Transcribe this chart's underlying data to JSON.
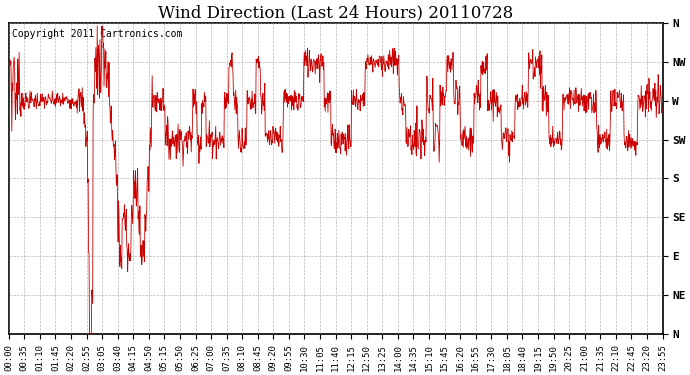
{
  "title": "Wind Direction (Last 24 Hours) 20110728",
  "copyright_text": "Copyright 2011 Cartronics.com",
  "background_color": "#ffffff",
  "line_color": "#cc0000",
  "grid_color": "#999999",
  "ytick_labels": [
    "N",
    "NE",
    "E",
    "SE",
    "S",
    "SW",
    "W",
    "NW",
    "N"
  ],
  "ytick_values": [
    0,
    45,
    90,
    135,
    180,
    225,
    270,
    315,
    360
  ],
  "ylim": [
    0,
    360
  ],
  "xtick_labels": [
    "00:00",
    "00:35",
    "01:10",
    "01:45",
    "02:20",
    "02:55",
    "03:05",
    "03:40",
    "04:15",
    "04:50",
    "05:15",
    "05:50",
    "06:25",
    "07:00",
    "07:35",
    "08:10",
    "08:45",
    "09:20",
    "09:55",
    "10:30",
    "11:05",
    "11:40",
    "12:15",
    "12:50",
    "13:25",
    "14:00",
    "14:35",
    "15:10",
    "15:45",
    "16:20",
    "16:55",
    "17:30",
    "18:05",
    "18:40",
    "19:15",
    "19:50",
    "20:25",
    "21:00",
    "21:35",
    "22:10",
    "22:45",
    "23:20",
    "23:55"
  ],
  "title_fontsize": 12,
  "copyright_fontsize": 7,
  "tick_fontsize": 6.5,
  "ytick_fontsize": 8
}
